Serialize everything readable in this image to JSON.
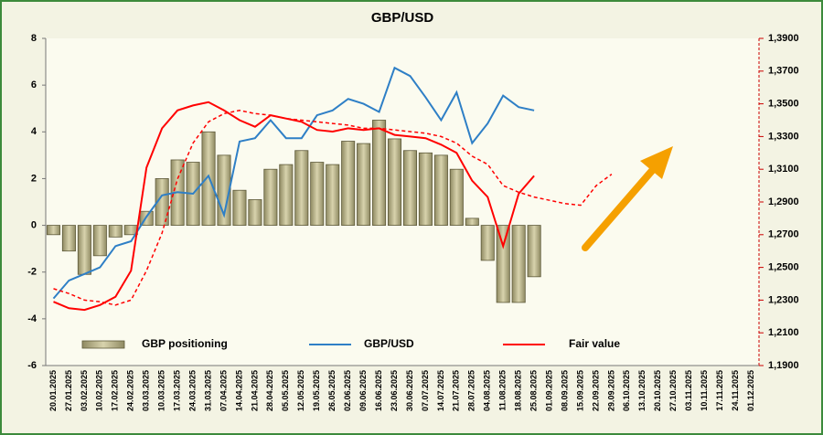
{
  "chart_data": {
    "type": "bar_line",
    "title": "GBP/USD",
    "categories": [
      "20.01.2025",
      "27.01.2025",
      "03.02.2025",
      "10.02.2025",
      "17.02.2025",
      "24.02.2025",
      "03.03.2025",
      "10.03.2025",
      "17.03.2025",
      "24.03.2025",
      "31.03.2025",
      "07.04.2025",
      "14.04.2025",
      "21.04.2025",
      "28.04.2025",
      "05.05.2025",
      "12.05.2025",
      "19.05.2025",
      "26.05.2025",
      "02.06.2025",
      "09.06.2025",
      "16.06.2025",
      "23.06.2025",
      "30.06.2025",
      "07.07.2025",
      "14.07.2025",
      "21.07.2025",
      "28.07.2025",
      "04.08.2025",
      "11.08.2025",
      "18.08.2025",
      "25.08.2025",
      "01.09.2025",
      "08.09.2025",
      "15.09.2025",
      "22.09.2025",
      "29.09.2025",
      "06.10.2025",
      "13.10.2025",
      "20.10.2025",
      "27.10.2025",
      "03.11.2025",
      "10.11.2025",
      "17.11.2025",
      "24.11.2025",
      "01.12.2025"
    ],
    "series": [
      {
        "name": "GBP positioning",
        "kind": "bar",
        "color": "#bdb68c",
        "axis": "y",
        "values": [
          -0.4,
          -1.1,
          -2.1,
          -1.3,
          -0.5,
          -0.4,
          0.6,
          2.0,
          2.8,
          2.7,
          4.0,
          3.0,
          1.5,
          1.1,
          2.4,
          2.6,
          3.2,
          2.7,
          2.6,
          3.6,
          3.5,
          4.5,
          3.7,
          3.2,
          3.1,
          3.0,
          2.4,
          0.3,
          -1.5,
          -3.3,
          -3.3,
          -2.2,
          null,
          null,
          null,
          null,
          null,
          null,
          null,
          null,
          null,
          null,
          null,
          null,
          null,
          null
        ]
      },
      {
        "name": "GBP/USD",
        "kind": "line",
        "color": "#2e7fc6",
        "axis": "y2",
        "values": [
          1.231,
          1.242,
          1.246,
          1.25,
          1.263,
          1.266,
          1.281,
          1.294,
          1.296,
          1.295,
          1.306,
          1.282,
          1.327,
          1.329,
          1.34,
          1.329,
          1.329,
          1.343,
          1.346,
          1.353,
          1.35,
          1.345,
          1.372,
          1.367,
          1.354,
          1.34,
          1.357,
          1.326,
          1.338,
          1.355,
          1.348,
          1.346,
          null,
          null,
          null,
          null,
          null,
          null,
          null,
          null,
          null,
          null,
          null,
          null,
          null,
          null
        ]
      },
      {
        "name": "Fair value",
        "kind": "line",
        "color": "#ff0000",
        "axis": "y2",
        "values": [
          1.229,
          1.225,
          1.224,
          1.227,
          1.232,
          1.248,
          1.311,
          1.335,
          1.346,
          1.349,
          1.351,
          1.346,
          1.34,
          1.336,
          1.343,
          1.341,
          1.339,
          1.334,
          1.333,
          1.335,
          1.334,
          1.335,
          1.331,
          1.33,
          1.329,
          1.325,
          1.32,
          1.303,
          1.293,
          1.263,
          1.295,
          1.306,
          null,
          null,
          null,
          null,
          null,
          null,
          null,
          null,
          null,
          null,
          null,
          null,
          null,
          null
        ]
      },
      {
        "kind": "line",
        "dashed": true,
        "color": "#ff0000",
        "axis": "y2",
        "values": [
          1.237,
          1.234,
          1.23,
          1.229,
          1.227,
          1.23,
          1.248,
          1.271,
          1.304,
          1.326,
          1.339,
          1.344,
          1.346,
          1.344,
          1.343,
          1.341,
          1.34,
          1.339,
          1.338,
          1.337,
          1.335,
          1.335,
          1.334,
          1.333,
          1.332,
          1.33,
          1.326,
          1.318,
          1.313,
          1.3,
          1.296,
          1.293,
          1.291,
          1.289,
          1.288,
          1.3,
          1.307,
          null,
          null,
          null,
          null,
          null,
          null,
          null,
          null,
          null
        ]
      }
    ],
    "ylim": [
      -6,
      8
    ],
    "yticks": [
      -6,
      -4,
      -2,
      0,
      2,
      4,
      6,
      8
    ],
    "y2lim": [
      1.19,
      1.39
    ],
    "y2ticks": [
      {
        "value": 1.19,
        "label": "1,1900"
      },
      {
        "value": 1.21,
        "label": "1,2100"
      },
      {
        "value": 1.23,
        "label": "1,2300"
      },
      {
        "value": 1.25,
        "label": "1,2500"
      },
      {
        "value": 1.27,
        "label": "1,2700"
      },
      {
        "value": 1.29,
        "label": "1,2900"
      },
      {
        "value": 1.31,
        "label": "1,3100"
      },
      {
        "value": 1.33,
        "label": "1,3300"
      },
      {
        "value": 1.35,
        "label": "1,3500"
      },
      {
        "value": 1.37,
        "label": "1,3700"
      },
      {
        "value": 1.39,
        "label": "1,3900"
      }
    ],
    "grid": false
  }
}
